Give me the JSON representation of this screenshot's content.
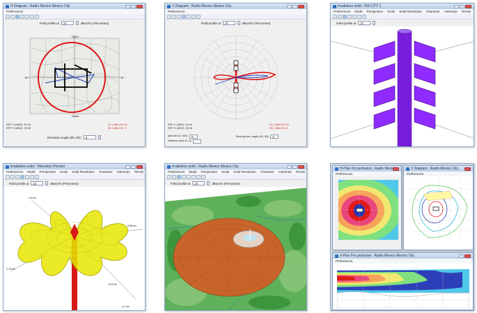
{
  "windows": {
    "hdiagram": {
      "title": "H Diagram : Radio Mexico Mexico City",
      "menu": [
        "Preferences"
      ],
      "field_label": "Field profile at",
      "field_value": "37",
      "field_unit": "dBuV/m (Percentes)",
      "compass_north": "North",
      "compass_south": "South",
      "compass_east": "E",
      "compass_west": "W",
      "stats_left": [
        "ERP V (dBW): 35.48",
        "ERP H (dBW): 35.48"
      ],
      "stats_right": [
        "31.1 dBuV/m: 51",
        "59.1 dBuV/m: 3"
      ],
      "bottom_label": "Elevation angle (90..90):",
      "bottom_value": "0"
    },
    "vdiagram": {
      "title": "V Diagram : Radio Mexico Mexico City",
      "menu": [
        "Preferences"
      ],
      "field_label": "Field profile at",
      "field_value": "37",
      "field_unit": "dBuV/m (Percentes)",
      "stats_left": [
        "ERP V (dBW): 35.48",
        "ERP H (dBW): 35.48"
      ],
      "stats_right": [
        "31.1 dBuV/m: 51",
        "59.1 dBuV/m: 3"
      ],
      "azimuth_label": "Azimuth (0..359):",
      "azimuth_value": "0",
      "distance_label": "Distance (km) (0..1):",
      "bearing_label": "Bearing elev. angle (90..90):",
      "bearing_value": "0"
    },
    "irradiation_fm": {
      "title": "Irradiation solid : FM-CITY 1",
      "menu": [
        "Preferences",
        "Mode",
        "Perspective",
        "Scale",
        "Solid Resolution",
        "Character",
        "Antennas",
        "Terrain"
      ],
      "field_label": "Field profile at",
      "field_value": "37"
    },
    "irradiation_tv": {
      "title": "Irradiation solid : Television Pernice",
      "menu": [
        "Preferences",
        "Mode",
        "Perspective",
        "Scale",
        "Solid Resolution",
        "Character",
        "Antennas",
        "Terrain"
      ],
      "field_label": "Field profile at",
      "field_value": "24",
      "field_unit": "dBuV/m (Percentes)",
      "dist_labels": [
        "4.6 km",
        "3.68 km",
        "3.23 km",
        "4.1 km",
        "10.5 km"
      ]
    },
    "irradiation_radio": {
      "title": "Irradiation solid : Radio Mexico Mexico City",
      "menu": [
        "Preferences",
        "Mode",
        "Perspective",
        "Scale",
        "Solid Resolution",
        "Character",
        "Antennas",
        "Terrain"
      ],
      "field_label": "Field profile at",
      "field_value": "24",
      "field_unit": "dBuV/m (Percentes)"
    },
    "coverage_h": {
      "title": "H-Plan Fm perfusion : Radio Mexico Mexico City",
      "menu": [
        "Preferences"
      ]
    },
    "coverage_v": {
      "title": "V Diagram : Radio Mexico City",
      "menu": [
        "Preferences"
      ]
    },
    "coverage_profile": {
      "title": "V-Plan Fm perfusion : Radio Mexico Mexico City",
      "menu": [
        "Preferences"
      ]
    }
  },
  "colors": {
    "pattern_red": "#e01515",
    "pattern_blue": "#1f3fbf",
    "panel_purple": "#8f2bff",
    "mast_purple": "#7b1fe0",
    "mesh_yellow": "#e8e600",
    "solid_orange": "#c8642a",
    "terrain_green": "#3aa03a"
  }
}
